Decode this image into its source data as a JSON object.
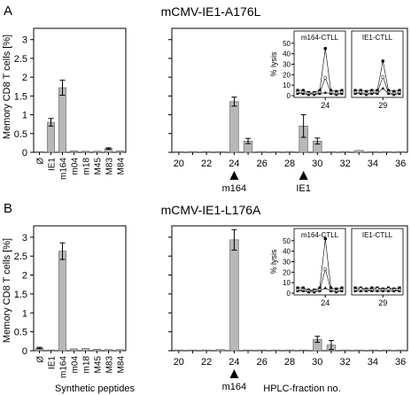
{
  "figure": {
    "ylabel": "Memory CD8 T cells [%]",
    "xlabel_left": "Synthetic peptides",
    "xlabel_right": "HPLC-fraction no."
  },
  "chart_data": [
    {
      "panel": "A",
      "title": "mCMV-IE1-A176L",
      "subchart": "synthetic-peptides",
      "type": "bar",
      "categories": [
        "Ø",
        "IE1",
        "m164",
        "m04",
        "m18",
        "M45",
        "M83",
        "M84"
      ],
      "values": [
        0.02,
        0.8,
        1.72,
        0.04,
        0.03,
        0.03,
        0.1,
        0.04
      ],
      "errors": [
        0.01,
        0.1,
        0.2,
        0.01,
        0.01,
        0.01,
        0.02,
        0.01
      ],
      "ylabel": "Memory CD8 T cells [%]",
      "ylim": [
        0,
        3.3
      ],
      "yticks": [
        0,
        0.5,
        1,
        1.5,
        2,
        2.5,
        3
      ]
    },
    {
      "panel": "A",
      "subchart": "hplc-fractions",
      "type": "bar",
      "x": [
        20,
        21,
        22,
        23,
        24,
        25,
        26,
        27,
        28,
        29,
        30,
        31,
        32,
        33,
        34,
        35,
        36
      ],
      "values": [
        0.02,
        0.02,
        0.02,
        0.02,
        1.35,
        0.3,
        0.02,
        0.02,
        0.02,
        0.7,
        0.3,
        0.02,
        0.02,
        0.05,
        0.02,
        0.02,
        0.02
      ],
      "errors": [
        0,
        0,
        0,
        0,
        0.12,
        0.07,
        0,
        0,
        0,
        0.3,
        0.08,
        0,
        0,
        0,
        0,
        0,
        0
      ],
      "xticks": [
        20,
        22,
        24,
        26,
        28,
        30,
        32,
        34,
        36
      ],
      "xlabel": "HPLC-fraction no.",
      "ylim": [
        0,
        3.3
      ],
      "markers": [
        {
          "x": 24,
          "label": "m164"
        },
        {
          "x": 29,
          "label": "IE1"
        }
      ]
    },
    {
      "panel": "B",
      "title": "mCMV-IE1-L176A",
      "subchart": "synthetic-peptides",
      "type": "bar",
      "categories": [
        "Ø",
        "IE1",
        "m164",
        "m04",
        "m18",
        "M45",
        "M83",
        "M84"
      ],
      "values": [
        0.07,
        0.02,
        2.63,
        0.05,
        0.06,
        0.04,
        0.03,
        0.03
      ],
      "errors": [
        0.02,
        0.01,
        0.22,
        0.01,
        0.01,
        0.01,
        0.01,
        0.01
      ],
      "ylabel": "Memory CD8 T cells [%]",
      "ylim": [
        0,
        3.3
      ],
      "yticks": [
        0,
        0.5,
        1,
        1.5,
        2,
        2.5,
        3
      ],
      "xlabel": "Synthetic peptides"
    },
    {
      "panel": "B",
      "subchart": "hplc-fractions",
      "type": "bar",
      "x": [
        20,
        21,
        22,
        23,
        24,
        25,
        26,
        27,
        28,
        29,
        30,
        31,
        32,
        33,
        34,
        35,
        36
      ],
      "values": [
        0.02,
        0.02,
        0.02,
        0.03,
        2.93,
        0.02,
        0.02,
        0.02,
        0.02,
        0.02,
        0.3,
        0.15,
        0.02,
        0.02,
        0.02,
        0.02,
        0.02
      ],
      "errors": [
        0,
        0,
        0,
        0,
        0.27,
        0,
        0,
        0,
        0,
        0,
        0.08,
        0.12,
        0,
        0,
        0,
        0,
        0
      ],
      "xticks": [
        20,
        22,
        24,
        26,
        28,
        30,
        32,
        34,
        36
      ],
      "xlabel": "HPLC-fraction no.",
      "ylim": [
        0,
        3.3
      ],
      "markers": [
        {
          "x": 24,
          "label": "m164"
        }
      ]
    }
  ],
  "insets": [
    {
      "panel": "A",
      "ylabel": "% lysis",
      "ylim": [
        0,
        60
      ],
      "yticks": [
        0,
        10,
        20,
        30,
        40,
        50
      ],
      "boxes": [
        {
          "title": "m164-CTLL",
          "xtick": "24",
          "series": [
            [
              5,
              5,
              3,
              3,
              5,
              45,
              5,
              4,
              5
            ],
            [
              3,
              3,
              2,
              2,
              3,
              17,
              3,
              2,
              3
            ],
            [
              2,
              2,
              1,
              1,
              2,
              3,
              2,
              1,
              2
            ]
          ]
        },
        {
          "title": "IE1-CTLL",
          "xtick": "29",
          "series": [
            [
              5,
              5,
              4,
              5,
              5,
              33,
              5,
              4,
              5
            ],
            [
              3,
              3,
              2,
              3,
              3,
              18,
              3,
              2,
              3
            ],
            [
              2,
              2,
              1,
              2,
              2,
              7,
              2,
              1,
              2
            ]
          ]
        }
      ]
    },
    {
      "panel": "B",
      "ylabel": "% lysis",
      "ylim": [
        0,
        60
      ],
      "yticks": [
        0,
        10,
        20,
        30,
        40,
        50
      ],
      "boxes": [
        {
          "title": "m164-CTLL",
          "xtick": "24",
          "series": [
            [
              5,
              5,
              3,
              3,
              5,
              52,
              5,
              4,
              5
            ],
            [
              3,
              3,
              2,
              2,
              3,
              23,
              3,
              2,
              3
            ],
            [
              2,
              2,
              1,
              1,
              2,
              5,
              2,
              1,
              2
            ]
          ]
        },
        {
          "title": "IE1-CTLL",
          "xtick": "29",
          "series": [
            [
              5,
              5,
              4,
              5,
              5,
              4,
              5,
              4,
              5
            ],
            [
              3,
              4,
              3,
              3,
              4,
              3,
              4,
              3,
              3
            ],
            [
              2,
              2,
              2,
              2,
              2,
              2,
              2,
              2,
              2
            ]
          ]
        }
      ]
    }
  ]
}
